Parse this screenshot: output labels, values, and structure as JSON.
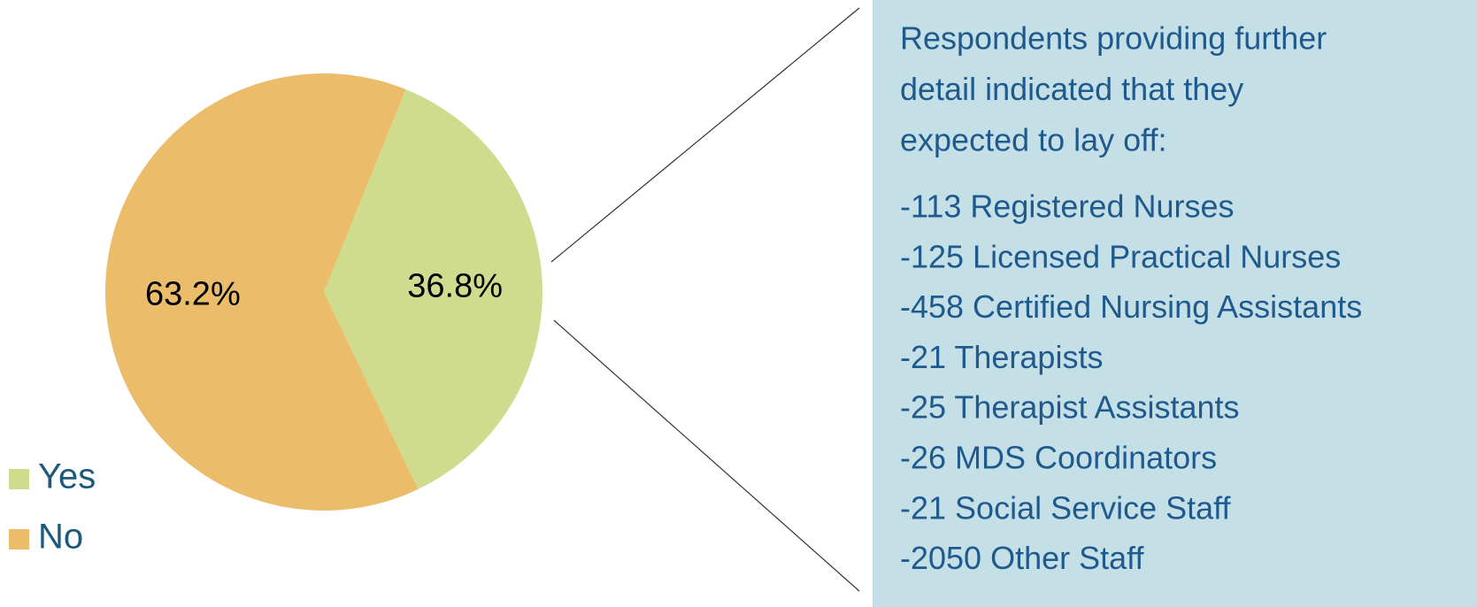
{
  "chart_data": {
    "type": "pie",
    "categories": [
      "Yes",
      "No"
    ],
    "values": [
      36.8,
      63.2
    ],
    "value_labels": [
      "36.8%",
      "63.2%"
    ],
    "colors": [
      "#cfdb8d",
      "#ebbd6a"
    ],
    "legend": "bottom-left"
  },
  "panel": {
    "heading_lines": [
      "Respondents providing further",
      "detail indicated that they",
      "expected to lay off:"
    ],
    "items": [
      "-113 Registered Nurses",
      "-125 Licensed Practical Nurses",
      "-458 Certified Nursing Assistants",
      "-21 Therapists",
      "-25 Therapist Assistants",
      "-26 MDS Coordinators",
      "-21 Social Service Staff",
      "-2050 Other Staff"
    ]
  }
}
